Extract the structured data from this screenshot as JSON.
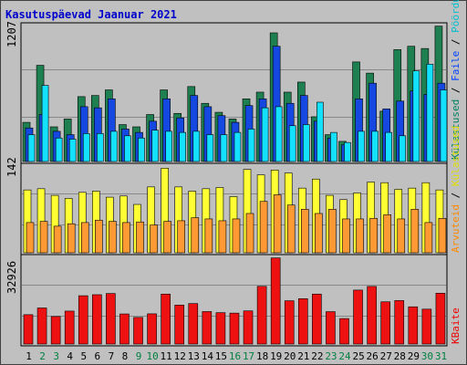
{
  "title": "Kasutuspäevad Jaanuar 2021",
  "colors": {
    "background": "#c0c0c0",
    "frame": "#000000",
    "grid": "#888888",
    "title": "#0000cc",
    "tick_day": "#000000",
    "tick_weekend": "#008040",
    "visits": "#00a080",
    "files": "#0040ff",
    "pages": "#00e0ff",
    "visits_fill": "#1e8050",
    "files_fill": "#1448e0",
    "pages_fill": "#14e0ff",
    "sites_fill": "#ffff33",
    "hits2_fill": "#ff9933",
    "kbytes_fill": "#ee1111"
  },
  "chart_data": [
    {
      "type": "bar",
      "panel": "top",
      "ylabel_max": "1207",
      "ymax": 1207,
      "x": [
        1,
        2,
        3,
        4,
        5,
        6,
        7,
        8,
        9,
        10,
        11,
        12,
        13,
        14,
        15,
        16,
        17,
        18,
        19,
        20,
        21,
        22,
        23,
        24,
        25,
        26,
        27,
        28,
        29,
        30,
        31
      ],
      "weekend": [
        2,
        3,
        9,
        10,
        16,
        17,
        23,
        24,
        30,
        31
      ],
      "right_label_parts": [
        "Külastused",
        "Faile",
        "Pöördumisi"
      ],
      "series": [
        {
          "name": "Pöördumisi",
          "values": [
            350,
            860,
            310,
            380,
            580,
            590,
            640,
            330,
            310,
            420,
            640,
            430,
            670,
            520,
            440,
            380,
            560,
            620,
            1150,
            620,
            710,
            400,
            240,
            180,
            890,
            790,
            450,
            1000,
            1030,
            1010,
            1210
          ]
        },
        {
          "name": "Faile",
          "values": [
            300,
            420,
            270,
            240,
            490,
            480,
            560,
            290,
            260,
            360,
            560,
            390,
            590,
            490,
            410,
            350,
            500,
            560,
            1030,
            520,
            590,
            360,
            210,
            150,
            560,
            700,
            470,
            540,
            630,
            600,
            700
          ]
        },
        {
          "name": "Külastused",
          "values": [
            240,
            680,
            210,
            200,
            250,
            250,
            270,
            230,
            210,
            280,
            270,
            260,
            270,
            240,
            240,
            260,
            290,
            480,
            490,
            320,
            330,
            530,
            260,
            170,
            270,
            270,
            260,
            230,
            810,
            870,
            640
          ]
        }
      ]
    },
    {
      "type": "bar",
      "panel": "middle",
      "ylabel_max": "142",
      "ymax": 142,
      "x": [
        1,
        2,
        3,
        4,
        5,
        6,
        7,
        8,
        9,
        10,
        11,
        12,
        13,
        14,
        15,
        16,
        17,
        18,
        19,
        20,
        21,
        22,
        23,
        24,
        25,
        26,
        27,
        28,
        29,
        30,
        31
      ],
      "right_label_parts": [
        "Arvuteid",
        "Külastused"
      ],
      "series": [
        {
          "name": "Külastused",
          "values": [
            104,
            106,
            95,
            90,
            100,
            102,
            92,
            94,
            80,
            109,
            140,
            109,
            102,
            106,
            108,
            93,
            138,
            129,
            137,
            132,
            107,
            122,
            95,
            88,
            99,
            117,
            116,
            105,
            107,
            116,
            104
          ]
        },
        {
          "name": "Arvuteid",
          "values": [
            50,
            52,
            44,
            48,
            50,
            54,
            52,
            50,
            51,
            46,
            52,
            53,
            58,
            56,
            53,
            56,
            65,
            85,
            96,
            79,
            72,
            65,
            72,
            56,
            56,
            57,
            63,
            56,
            72,
            50,
            57
          ]
        }
      ]
    },
    {
      "type": "bar",
      "panel": "bottom",
      "ylabel_max": "32926",
      "ymax": 32926,
      "x": [
        1,
        2,
        3,
        4,
        5,
        6,
        7,
        8,
        9,
        10,
        11,
        12,
        13,
        14,
        15,
        16,
        17,
        18,
        19,
        20,
        21,
        22,
        23,
        24,
        25,
        26,
        27,
        28,
        29,
        30,
        31
      ],
      "right_label_parts": [
        "KBaite"
      ],
      "series": [
        {
          "name": "KBaite",
          "values": [
            11260,
            13840,
            10560,
            12630,
            18540,
            18930,
            19390,
            11540,
            10210,
            11590,
            19170,
            14960,
            15530,
            12460,
            12040,
            11860,
            12710,
            22140,
            33040,
            16600,
            17400,
            19170,
            12420,
            9770,
            20700,
            22110,
            16200,
            16680,
            14280,
            13380,
            19510
          ]
        }
      ]
    }
  ]
}
